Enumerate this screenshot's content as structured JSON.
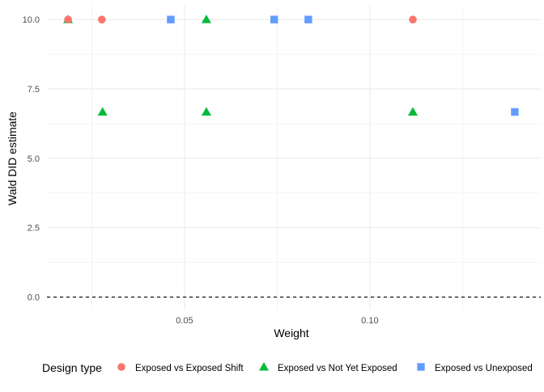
{
  "chart_data": {
    "type": "scatter",
    "title": "",
    "xlabel": "Weight",
    "ylabel": "Wald DID estimate",
    "xlim": [
      0.0129,
      0.1461
    ],
    "ylim": [
      -0.45,
      10.5
    ],
    "x_ticks": [
      0.05,
      0.1
    ],
    "x_tick_labels": [
      "0.05",
      "0.10"
    ],
    "x_minor_ticks": [
      0.025,
      0.075,
      0.125
    ],
    "y_ticks": [
      0,
      2.5,
      5,
      7.5,
      10
    ],
    "y_tick_labels": [
      "0.0",
      "2.5",
      "5.0",
      "7.5",
      "10.0"
    ],
    "y_minor_ticks": [
      1.25,
      3.75,
      6.25,
      8.75
    ],
    "grid": true,
    "reference_line": {
      "y": 0,
      "style": "dashed",
      "color": "#000000"
    },
    "legend": {
      "title": "Design type",
      "position": "bottom"
    },
    "series": [
      {
        "name": "Exposed vs Exposed Shift",
        "shape": "circle",
        "color": "#F8766D",
        "points": [
          {
            "x": 0.0186,
            "y": 10.0
          },
          {
            "x": 0.0277,
            "y": 10.0
          },
          {
            "x": 0.1116,
            "y": 10.0
          }
        ]
      },
      {
        "name": "Exposed vs Not Yet Exposed",
        "shape": "triangle",
        "color": "#00BA38",
        "points": [
          {
            "x": 0.0186,
            "y": 10.0
          },
          {
            "x": 0.0559,
            "y": 10.0
          },
          {
            "x": 0.0279,
            "y": 6.67
          },
          {
            "x": 0.0559,
            "y": 6.67
          },
          {
            "x": 0.1116,
            "y": 6.67
          }
        ]
      },
      {
        "name": "Exposed vs Unexposed",
        "shape": "square",
        "color": "#619CFF",
        "points": [
          {
            "x": 0.0463,
            "y": 10.0
          },
          {
            "x": 0.0742,
            "y": 10.0
          },
          {
            "x": 0.0834,
            "y": 10.0
          },
          {
            "x": 0.1391,
            "y": 6.67
          }
        ]
      }
    ]
  }
}
